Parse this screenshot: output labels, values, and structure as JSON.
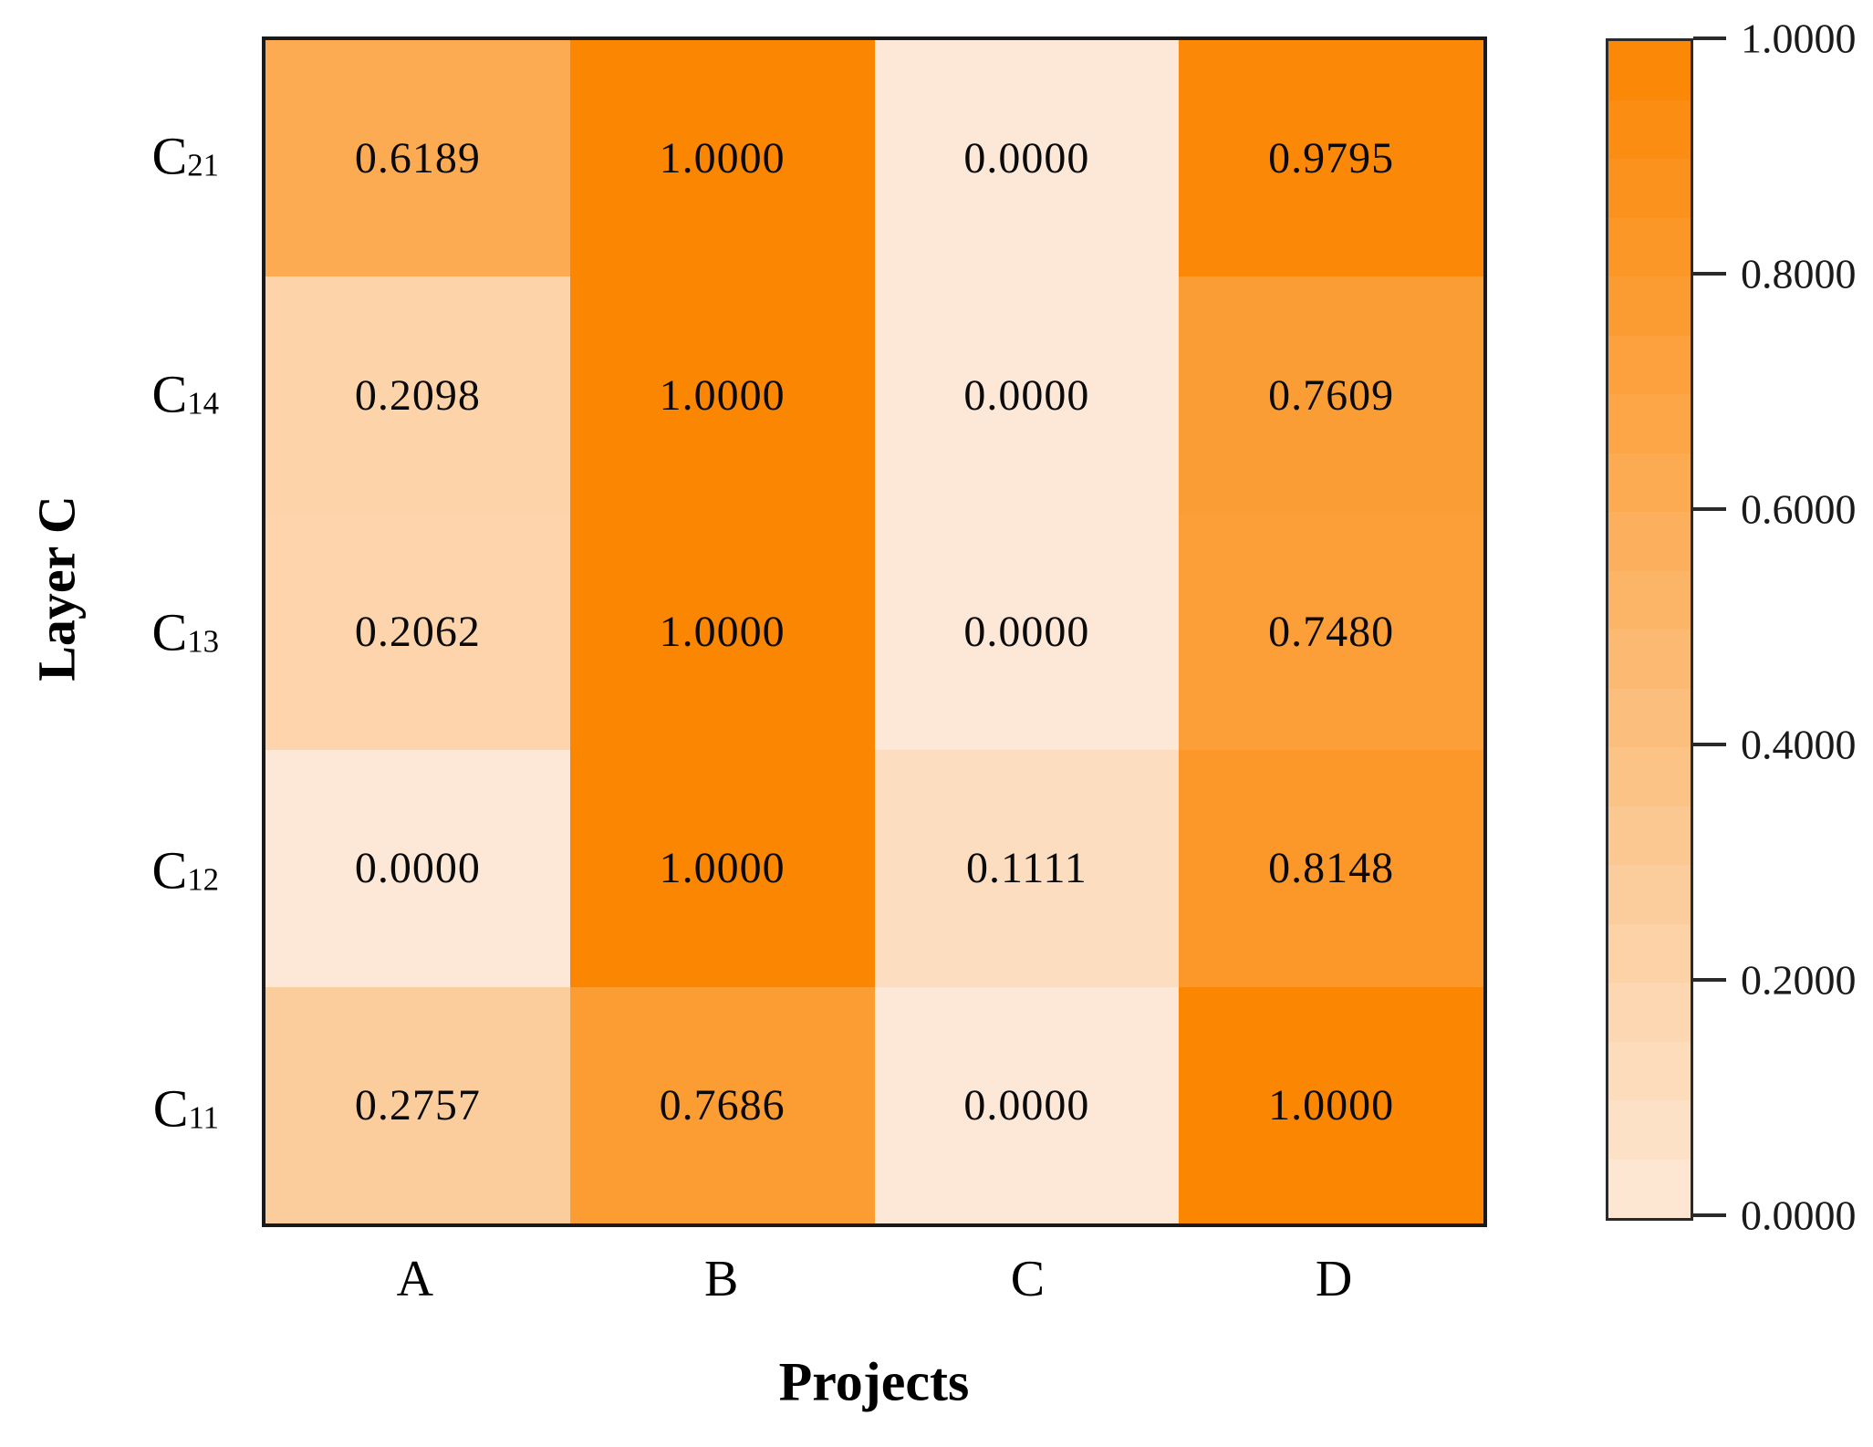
{
  "chart_data": {
    "type": "heatmap",
    "title": "",
    "x_label": "Projects",
    "y_label": "Layer C",
    "columns": [
      "A",
      "B",
      "C",
      "D"
    ],
    "rows": [
      {
        "label_base": "C",
        "label_sub": "21",
        "values": [
          0.6189,
          1.0,
          0.0,
          0.9795
        ]
      },
      {
        "label_base": "C",
        "label_sub": "14",
        "values": [
          0.2098,
          1.0,
          0.0,
          0.7609
        ]
      },
      {
        "label_base": "C",
        "label_sub": "13",
        "values": [
          0.2062,
          1.0,
          0.0,
          0.748
        ]
      },
      {
        "label_base": "C",
        "label_sub": "12",
        "values": [
          0.0,
          1.0,
          0.1111,
          0.8148
        ]
      },
      {
        "label_base": "C",
        "label_sub": "11",
        "values": [
          0.2757,
          0.7686,
          0.0,
          1.0
        ]
      }
    ],
    "cell_value_decimals": 4,
    "value_range": [
      0.0,
      1.0
    ],
    "grid": false,
    "legend_position": "colorbar-right",
    "colormap": {
      "low_color": "#FDE8D7",
      "high_color": "#FB8602",
      "steps": 20
    },
    "colorbar_tick_labels": [
      "1.0000",
      "0.8000",
      "0.6000",
      "0.4000",
      "0.2000",
      "0.0000"
    ]
  },
  "colors": {
    "plot_border": "#1a1a1a",
    "colorbar_border": "#2a2a2a",
    "cell_text": "#0a0a0a",
    "background": "#ffffff"
  }
}
